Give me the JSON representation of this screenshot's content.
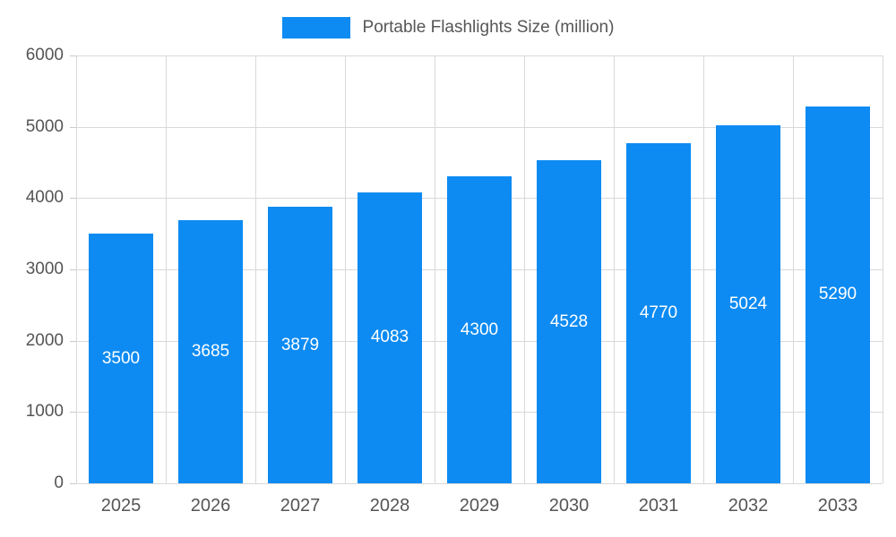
{
  "chart_data": {
    "type": "bar",
    "title": "Portable Flashlights Size (million)",
    "categories": [
      "2025",
      "2026",
      "2027",
      "2028",
      "2029",
      "2030",
      "2031",
      "2032",
      "2033"
    ],
    "values": [
      3500,
      3685,
      3879,
      4083,
      4300,
      4528,
      4770,
      5024,
      5290
    ],
    "xlabel": "",
    "ylabel": "",
    "ylim": [
      0,
      6000
    ],
    "ytick_step": 1000,
    "ytick_labels": [
      "0",
      "1000",
      "2000",
      "3000",
      "4000",
      "5000",
      "6000"
    ],
    "grid": true,
    "legend_position": "top",
    "legend_entries": [
      "Portable Flashlights Size (million)"
    ],
    "bar_color": "#0d8bf2",
    "value_label_color": "#ffffff",
    "axis_text_color": "#555555",
    "gridline_color": "#d9d9d9"
  },
  "legend": {
    "label": "Portable Flashlights Size (million)"
  }
}
